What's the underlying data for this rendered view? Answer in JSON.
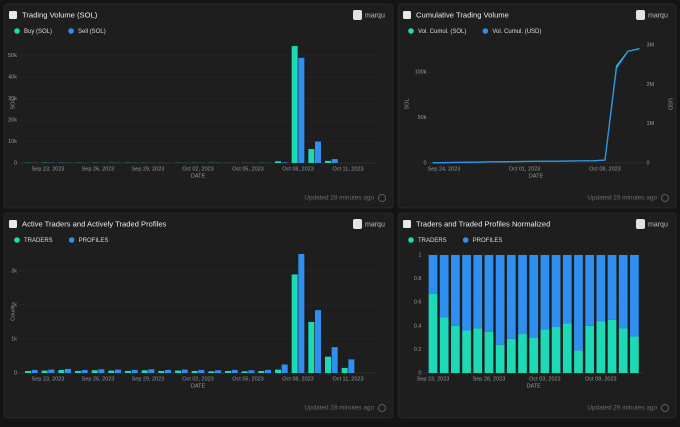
{
  "chart_data": [
    {
      "type": "bar",
      "title": "Trading Volume (SOL)",
      "author": "marqu",
      "updated": "Updated 28 minutes ago",
      "xlabel": "DATE",
      "ylabel": "SOL",
      "categories": [
        null,
        "Sep 23, 2023",
        null,
        null,
        "Sep 26, 2023",
        null,
        null,
        "Sep 29, 2023",
        null,
        null,
        "Oct 02, 2023",
        null,
        null,
        "Oct 05, 2023",
        null,
        null,
        "Oct 08, 2023",
        null,
        null,
        "Oct 11, 2023",
        null
      ],
      "series": [
        {
          "name": "Buy (SOL)",
          "color": "#1ed9b5",
          "values": [
            100,
            150,
            120,
            80,
            90,
            100,
            110,
            70,
            60,
            80,
            90,
            100,
            50,
            60,
            80,
            800,
            54500,
            6500,
            1000,
            0,
            0
          ]
        },
        {
          "name": "Sell (SOL)",
          "color": "#2f8fee",
          "values": [
            80,
            120,
            100,
            60,
            70,
            90,
            100,
            60,
            50,
            70,
            80,
            90,
            40,
            50,
            60,
            300,
            49000,
            10000,
            1800,
            0,
            0
          ]
        }
      ],
      "ylim": [
        0,
        55000
      ],
      "yticks": [
        0,
        {
          "value": 10000,
          "label": "10k"
        },
        {
          "value": 20000,
          "label": "20k"
        },
        {
          "value": 30000,
          "label": "30k"
        },
        {
          "value": 40000,
          "label": "40k"
        },
        {
          "value": 50000,
          "label": "50k"
        }
      ],
      "grid": true
    },
    {
      "type": "line",
      "title": "Cumulative Trading Volume",
      "author": "marqu",
      "updated": "Updated 29 minutes ago",
      "xlabel": "DATE",
      "ylabel": "SOL",
      "y2label": "USD",
      "categories": [
        null,
        "Sep 24, 2023",
        null,
        null,
        null,
        null,
        null,
        null,
        "Oct 01, 2023",
        null,
        null,
        null,
        null,
        null,
        null,
        "Oct 08, 2023",
        null,
        null,
        null
      ],
      "series": [
        {
          "name": "Vol. Cumul. (SOL)",
          "color": "#1ed9b5",
          "values": [
            150,
            400,
            600,
            800,
            1000,
            1200,
            1400,
            1550,
            1700,
            1850,
            2000,
            2100,
            2200,
            2300,
            2450,
            3250,
            106750,
            123250,
            126050
          ]
        },
        {
          "name": "Vol. Cumul. (USD)",
          "color": "#2f8fee",
          "axis": "y2",
          "values": [
            3500,
            9000,
            13500,
            18000,
            22500,
            27000,
            31500,
            35000,
            38500,
            42000,
            45000,
            47500,
            50000,
            52000,
            55500,
            73000,
            2410000,
            2840000,
            2900000
          ]
        }
      ],
      "ylim": [
        0,
        130000
      ],
      "yticks": [
        0,
        {
          "value": 50000,
          "label": "50k"
        },
        {
          "value": 100000,
          "label": "100k"
        }
      ],
      "y2lim": [
        0,
        3000000
      ],
      "y2ticks": [
        0,
        {
          "value": 1000000,
          "label": "1M"
        },
        {
          "value": 2000000,
          "label": "2M"
        },
        {
          "value": 3000000,
          "label": "3M"
        }
      ],
      "grid": false
    },
    {
      "type": "bar",
      "title": "Active Traders and Actively Traded Profiles",
      "author": "marqu",
      "updated": "Updated 28 minutes ago",
      "xlabel": "DATE",
      "ylabel": "Count",
      "categories": [
        null,
        "Sep 23, 2023",
        null,
        null,
        "Sep 26, 2023",
        null,
        null,
        "Sep 29, 2023",
        null,
        null,
        "Oct 02, 2023",
        null,
        null,
        "Oct 05, 2023",
        null,
        null,
        "Oct 08, 2023",
        null,
        null,
        "Oct 11, 2023",
        null
      ],
      "series": [
        {
          "name": "TRADERS",
          "color": "#1ed9b5",
          "values": [
            60,
            70,
            90,
            60,
            80,
            70,
            60,
            80,
            60,
            70,
            60,
            50,
            60,
            50,
            60,
            100,
            2900,
            1500,
            480,
            150,
            0
          ]
        },
        {
          "name": "PROFILES",
          "color": "#2f8fee",
          "values": [
            90,
            100,
            120,
            90,
            110,
            100,
            90,
            110,
            90,
            100,
            90,
            80,
            90,
            80,
            90,
            250,
            3500,
            1850,
            760,
            400,
            0
          ]
        }
      ],
      "ylim": [
        0,
        3500
      ],
      "yticks": [
        0,
        {
          "value": 1000,
          "label": "1k"
        },
        {
          "value": 2000,
          "label": "2k"
        },
        {
          "value": 3000,
          "label": "3k"
        }
      ],
      "grid": true
    },
    {
      "type": "bar",
      "stacked": true,
      "title": "Traders and Traded Profiles Normalized",
      "author": "marqu",
      "updated": "Updated 29 minutes ago",
      "xlabel": "DATE",
      "categories": [
        "Sep 23, 2023",
        null,
        null,
        null,
        null,
        "Sep 28, 2023",
        null,
        null,
        null,
        null,
        "Oct 03, 2023",
        null,
        null,
        null,
        null,
        "Oct 08, 2023",
        null,
        null,
        null
      ],
      "series": [
        {
          "name": "TRADERS",
          "color": "#1ed9b5",
          "values": [
            0.67,
            0.47,
            0.4,
            0.36,
            0.38,
            0.35,
            0.24,
            0.29,
            0.33,
            0.3,
            0.37,
            0.39,
            0.42,
            0.19,
            0.4,
            0.44,
            0.45,
            0.38,
            0.31
          ]
        },
        {
          "name": "PROFILES",
          "color": "#2f8fee",
          "values": [
            0.33,
            0.53,
            0.6,
            0.64,
            0.62,
            0.65,
            0.76,
            0.71,
            0.67,
            0.7,
            0.63,
            0.61,
            0.58,
            0.81,
            0.6,
            0.56,
            0.55,
            0.62,
            0.69
          ]
        }
      ],
      "ylim": [
        0,
        1
      ],
      "yticks": [
        0,
        0.2,
        0.4,
        0.6,
        0.8,
        1
      ],
      "grid": true
    }
  ]
}
